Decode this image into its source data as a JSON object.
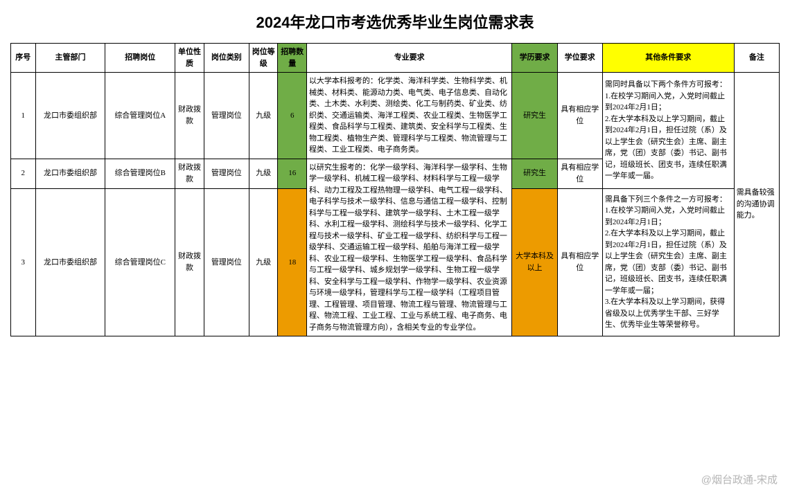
{
  "title": "2024年龙口市考选优秀毕业生岗位需求表",
  "headers": {
    "seq": "序号",
    "dept": "主管部门",
    "pos": "招聘岗位",
    "unit": "单位性质",
    "cat": "岗位类别",
    "level": "岗位等级",
    "count": "招聘数量",
    "major": "专业要求",
    "edu": "学历要求",
    "degree": "学位要求",
    "other": "其他条件要求",
    "note": "备注"
  },
  "rows": [
    {
      "seq": "1",
      "dept": "龙口市委组织部",
      "pos": "综合管理岗位A",
      "unit": "财政拨款",
      "cat": "管理岗位",
      "level": "九级",
      "count": "6",
      "count_bg": "green",
      "major": "以大学本科报考的：化学类、海洋科学类、生物科学类、机械类、材料类、能源动力类、电气类、电子信息类、自动化类、土木类、水利类、测绘类、化工与制药类、矿业类、纺织类、交通运输类、海洋工程类、农业工程类、生物医学工程类、食品科学与工程类、建筑类、安全科学与工程类、生物工程类、植物生产类、管理科学与工程类、物流管理与工程类、工业工程类、电子商务类。",
      "edu": "研究生",
      "edu_bg": "green",
      "degree": "具有相应学位",
      "note": "需具备较强的沟通协调能力。"
    },
    {
      "seq": "2",
      "dept": "龙口市委组织部",
      "pos": "综合管理岗位B",
      "unit": "财政拨款",
      "cat": "管理岗位",
      "level": "九级",
      "count": "16",
      "count_bg": "green",
      "major": "以研究生报考的：化学一级学科、海洋科学一级学科、生物学一级学科、机械工程一级学科、材料科学与工程一级学科、动力工程及工程热物理一级学科、电气工程一级学科、电子科学与技术一级学科、信息与通信工程一级学科、控制科学与工程一级学科、建筑学一级学科、土木工程一级学科、水利工程一级学科、测绘科学与技术一级学科、化学工程与技术一级学科、矿业工程一级学科、纺织科学与工程一级学科、交通运输工程一级学科、船舶与海洋工程一级学科、农业工程一级学科、生物医学工程一级学科、食品科学与工程一级学科、城乡规划学一级学科、生物工程一级学科、安全科学与工程一级学科、作物学一级学科、农业资源与环境一级学科，管理科学与工程一级学科（工程项目管理、工程管理、项目管理、物流工程与管理、物流管理与工程、物流工程、工业工程、工业与系统工程、电子商务、电子商务与物流管理方向），含相关专业的专业学位。",
      "edu": "研究生",
      "edu_bg": "green",
      "degree": "具有相应学位"
    },
    {
      "seq": "3",
      "dept": "龙口市委组织部",
      "pos": "综合管理岗位C",
      "unit": "财政拨款",
      "cat": "管理岗位",
      "level": "九级",
      "count": "18",
      "count_bg": "orange",
      "edu": "大学本科及以上",
      "edu_bg": "orange",
      "degree": "具有相应学位"
    }
  ],
  "other1": "需同时具备以下两个条件方可报考：\n1.在校学习期间入党，入党时间截止到2024年2月1日；\n2.在大学本科及以上学习期间，截止到2024年2月1日，担任过院（系）及以上学生会（研究生会）主席、副主席，党（团）支部（委）书记、副书记，班级班长、团支书，连续任职满一学年或一届。",
  "other2": "需具备下列三个条件之一方可报考：\n1.在校学习期间入党，入党时间截止到2024年2月1日；\n2.在大学本科及以上学习期间，截止到2024年2月1日，担任过院（系）及以上学生会（研究生会）主席、副主席，党（团）支部（委）书记、副书记，班级班长、团支书，连续任职满一学年或一届；\n3.在大学本科及以上学习期间，获得省级及以上优秀学生干部、三好学生、优秀毕业生等荣誉称号。",
  "watermark": "@烟台政通-宋成"
}
